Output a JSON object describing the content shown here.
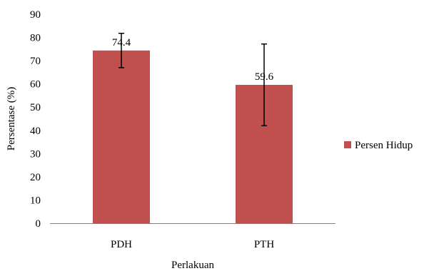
{
  "chart_data": {
    "type": "bar",
    "categories": [
      "PDH",
      "PTH"
    ],
    "series": [
      {
        "name": "Persen Hidup",
        "values": [
          74.4,
          59.6
        ],
        "error_upper": [
          81.8,
          77.2
        ],
        "error_lower": [
          67.0,
          42.0
        ]
      }
    ],
    "data_labels": [
      "74.4",
      "59.6"
    ],
    "xlabel": "Perlakuan",
    "ylabel": "Persentase (%)",
    "ylim": [
      0,
      90
    ],
    "yticks": [
      0,
      10,
      20,
      30,
      40,
      50,
      60,
      70,
      80,
      90
    ],
    "grid": false,
    "legend_position": "right",
    "colors": {
      "bar": "#c0504d",
      "axis": "#808080",
      "error_bar": "#000000"
    }
  }
}
